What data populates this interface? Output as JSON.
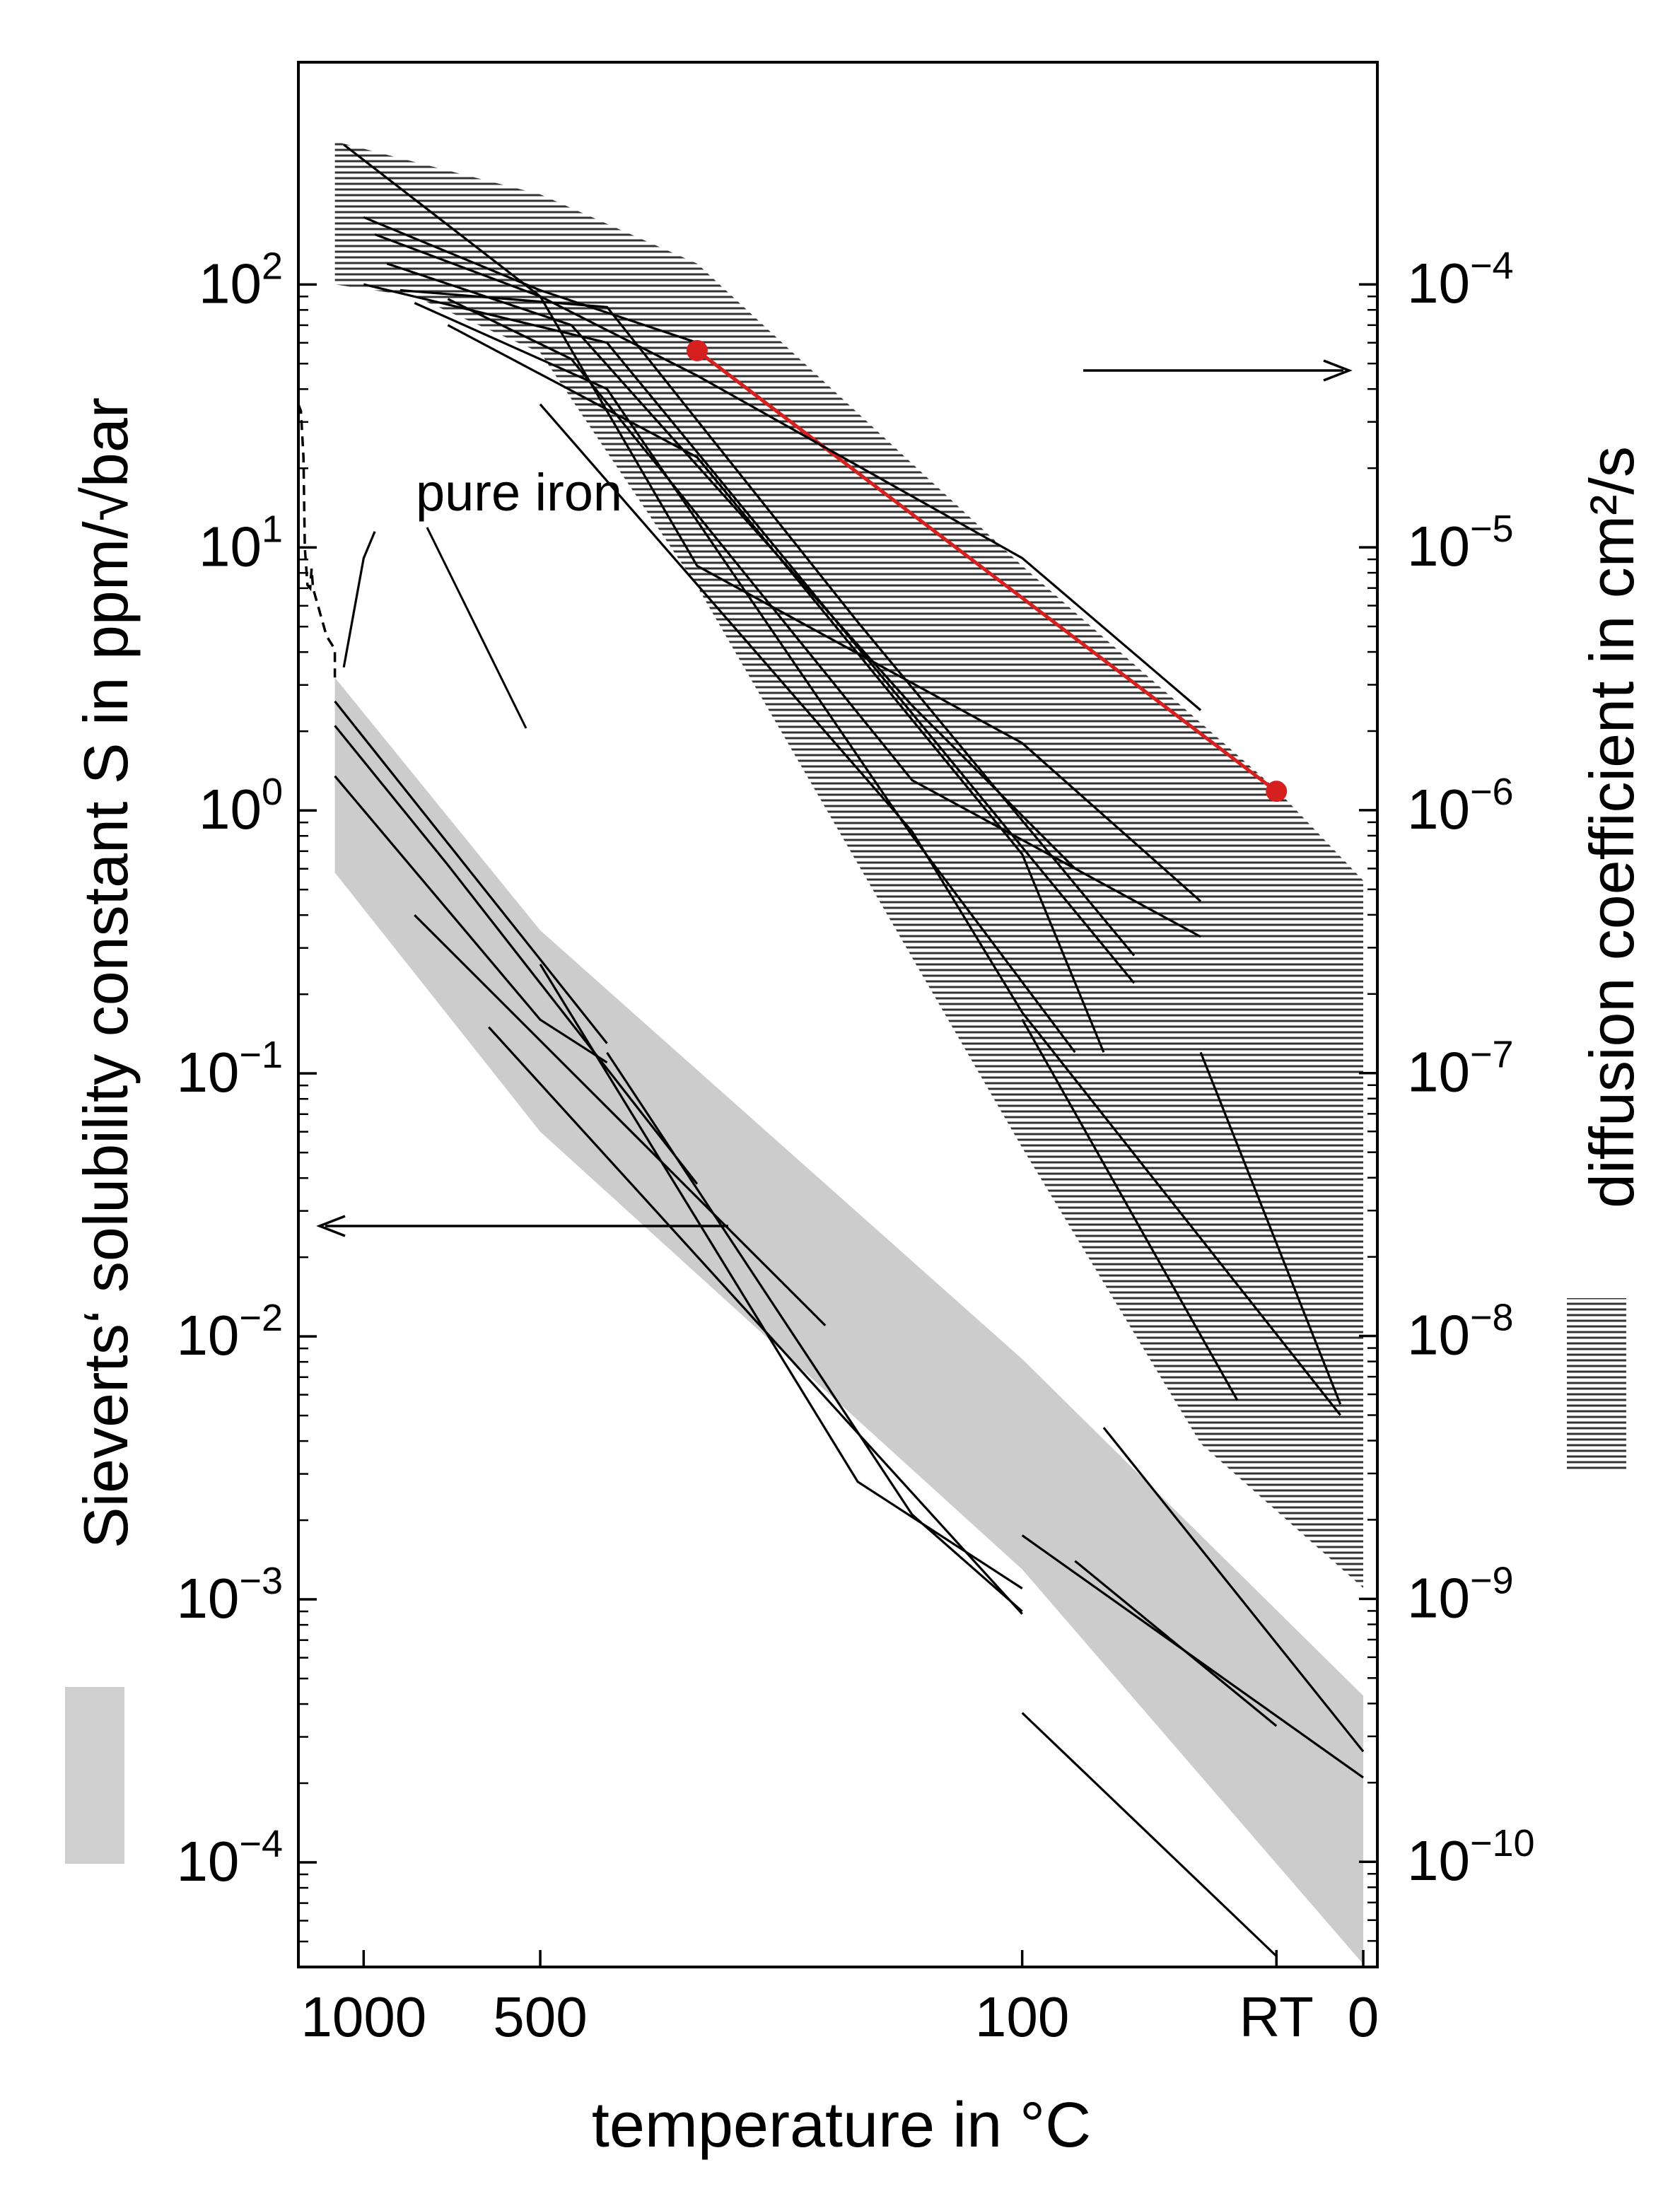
{
  "chart_data": {
    "type": "line",
    "xlabel": "temperature in °C",
    "ylabel_left": "Sieverts‘ solubility constant S in ppm/√bar",
    "ylabel_right": "diffusion coefficient in cm²/s",
    "x_scale": "reciprocal absolute temperature (1/T)",
    "x_ticks": [
      "1000",
      "500",
      "100",
      "RT",
      "0"
    ],
    "x_ticks_celsius": [
      1000,
      500,
      100,
      20,
      0
    ],
    "xlim_celsius": [
      1400,
      -3
    ],
    "y_left_scale": "log",
    "y_left_ticks": [
      "10^2",
      "10^1",
      "10^0",
      "10^-1",
      "10^-2",
      "10^-3",
      "10^-4"
    ],
    "y_left_ticks_base": "10",
    "y_left_ticks_exp": [
      "2",
      "1",
      "0",
      "−1",
      "−2",
      "−3",
      "−4"
    ],
    "y_left_ticks_values": [
      100,
      10,
      1,
      0.1,
      0.01,
      0.001,
      0.0001
    ],
    "ylim_left": [
      4e-05,
      700
    ],
    "y_right_scale": "log",
    "y_right_ticks": [
      "10^-4",
      "10^-5",
      "10^-6",
      "10^-7",
      "10^-8",
      "10^-9",
      "10^-10"
    ],
    "y_right_ticks_base": "10",
    "y_right_ticks_exp": [
      "−4",
      "−5",
      "−6",
      "−7",
      "−8",
      "−9",
      "−10"
    ],
    "y_right_ticks_values": [
      0.0001,
      1e-05,
      1e-06,
      1e-07,
      1e-08,
      1e-09,
      1e-10
    ],
    "ylim_right": [
      3.98e-11,
      0.0007
    ],
    "annotations": [
      "pure iron"
    ],
    "legend": [
      {
        "label": "Sieverts‘ solubility constant S",
        "style": "grey shaded band",
        "color": "#cccccc"
      },
      {
        "label": "diffusion coefficient",
        "style": "horizontal hatching band",
        "color": "#555555"
      }
    ],
    "series": [
      {
        "kind": "diffusion-band",
        "axis": "right",
        "color": "#555555",
        "upper": [
          [
            1150,
            0.00035
          ],
          [
            500,
            0.00022
          ],
          [
            300,
            0.00012
          ],
          [
            100,
            8.5e-06
          ],
          [
            20,
            1.2e-06
          ],
          [
            0,
            5.4e-07
          ]
        ],
        "lower": [
          [
            1150,
            0.0001
          ],
          [
            800,
            9e-05
          ],
          [
            500,
            5.5e-05
          ],
          [
            300,
            7.1e-06
          ],
          [
            100,
            5.2e-08
          ],
          [
            40,
            3.9e-09
          ],
          [
            0,
            1.1e-09
          ]
        ]
      },
      {
        "kind": "solubility-band",
        "axis": "left",
        "color": "#cccccc",
        "upper": [
          [
            1150,
            3.2
          ],
          [
            500,
            0.35
          ],
          [
            100,
            0.0082
          ],
          [
            0,
            0.00043
          ]
        ],
        "lower": [
          [
            1150,
            0.58
          ],
          [
            500,
            0.06
          ],
          [
            100,
            0.0013
          ],
          [
            0,
            4.1e-05
          ]
        ]
      },
      {
        "kind": "red-line",
        "axis": "right",
        "color": "#d62020",
        "points": [
          [
            300,
            5.6e-05
          ],
          [
            20,
            1.18e-06
          ]
        ]
      },
      {
        "kind": "pure-iron",
        "axis": "left",
        "style": "dashed",
        "points": [
          [
            1400,
            35
          ],
          [
            1380,
            33
          ],
          [
            1360,
            22
          ],
          [
            1350,
            10
          ],
          [
            1330,
            7.2
          ],
          [
            1310,
            7.0
          ],
          [
            1300,
            8.3
          ],
          [
            1290,
            7.0
          ],
          [
            1200,
            4.6
          ],
          [
            1150,
            4.1
          ],
          [
            1150,
            3.2
          ]
        ]
      },
      {
        "kind": "thin",
        "axis": "left",
        "points": [
          [
            1150,
            2.6
          ],
          [
            700,
            0.75
          ],
          [
            400,
            0.13
          ]
        ]
      },
      {
        "kind": "thin",
        "axis": "left",
        "points": [
          [
            1150,
            2.1
          ],
          [
            700,
            0.62
          ],
          [
            300,
            0.038
          ]
        ]
      },
      {
        "kind": "thin",
        "axis": "left",
        "points": [
          [
            1150,
            1.35
          ],
          [
            500,
            0.16
          ],
          [
            400,
            0.11
          ]
        ]
      },
      {
        "kind": "thin",
        "axis": "left",
        "points": [
          [
            800,
            0.4
          ],
          [
            200,
            0.011
          ]
        ]
      },
      {
        "kind": "thin",
        "axis": "left",
        "points": [
          [
            500,
            0.26
          ],
          [
            180,
            0.0028
          ],
          [
            100,
            0.0011
          ]
        ]
      },
      {
        "kind": "thin",
        "axis": "left",
        "points": [
          [
            400,
            0.12
          ],
          [
            150,
            0.0021
          ],
          [
            100,
            0.0009
          ]
        ]
      },
      {
        "kind": "thin",
        "axis": "left",
        "points": [
          [
            600,
            0.15
          ],
          [
            100,
            0.00088
          ]
        ]
      },
      {
        "kind": "thin",
        "axis": "left",
        "points": [
          [
            70,
            0.0045
          ],
          [
            0,
            0.000264
          ]
        ]
      },
      {
        "kind": "thin",
        "axis": "left",
        "points": [
          [
            100,
            0.00175
          ],
          [
            0,
            0.00021
          ]
        ]
      },
      {
        "kind": "thin",
        "axis": "left",
        "points": [
          [
            80,
            0.0014
          ],
          [
            20,
            0.00033
          ]
        ]
      },
      {
        "kind": "thin",
        "axis": "left",
        "points": [
          [
            100,
            0.00037
          ],
          [
            20,
            4.4e-05
          ]
        ]
      },
      {
        "kind": "thin",
        "axis": "left",
        "points": [
          [
            1100,
            3.5
          ],
          [
            1000,
            9.1
          ],
          [
            950,
            11.5
          ]
        ]
      },
      {
        "kind": "thin",
        "axis": "right",
        "points": [
          [
            1100,
            0.00034
          ],
          [
            500,
            9e-05
          ],
          [
            300,
            4.5e-05
          ],
          [
            100,
            9.1e-06
          ],
          [
            40,
            2.4e-06
          ]
        ]
      },
      {
        "kind": "thin",
        "axis": "right",
        "points": [
          [
            1000,
            0.00018
          ],
          [
            500,
            9.5e-05
          ],
          [
            300,
            6e-05
          ]
        ]
      },
      {
        "kind": "thin",
        "axis": "right",
        "points": [
          [
            950,
            0.000155
          ],
          [
            500,
            9e-05
          ],
          [
            300,
            8.5e-06
          ],
          [
            100,
            1.8e-06
          ],
          [
            40,
            4.5e-07
          ]
        ]
      },
      {
        "kind": "thin",
        "axis": "right",
        "points": [
          [
            900,
            0.00012
          ],
          [
            450,
            7e-05
          ],
          [
            150,
            2.5e-06
          ],
          [
            80,
            6e-07
          ]
        ]
      },
      {
        "kind": "thin",
        "axis": "right",
        "points": [
          [
            1000,
            0.0001
          ],
          [
            400,
            6e-05
          ],
          [
            60,
            2.2e-07
          ]
        ]
      },
      {
        "kind": "thin",
        "axis": "right",
        "points": [
          [
            850,
            9.5e-05
          ],
          [
            400,
            8.2e-05
          ],
          [
            180,
            5.2e-06
          ],
          [
            60,
            2.8e-07
          ]
        ]
      },
      {
        "kind": "thin",
        "axis": "right",
        "points": [
          [
            700,
            8.8e-05
          ],
          [
            450,
            5.2e-05
          ],
          [
            150,
            1.3e-06
          ],
          [
            40,
            3.3e-07
          ]
        ]
      },
      {
        "kind": "thin",
        "axis": "right",
        "points": [
          [
            700,
            7e-05
          ],
          [
            300,
            2.2e-05
          ],
          [
            100,
            6.8e-07
          ],
          [
            70,
            1.2e-07
          ]
        ]
      },
      {
        "kind": "thin",
        "axis": "right",
        "points": [
          [
            800,
            8.5e-05
          ],
          [
            400,
            4e-05
          ],
          [
            150,
            8e-07
          ],
          [
            80,
            1.2e-07
          ]
        ]
      },
      {
        "kind": "thin",
        "axis": "right",
        "points": [
          [
            500,
            3.5e-05
          ],
          [
            150,
            8.3e-07
          ],
          [
            100,
            1.7e-07
          ],
          [
            5,
            5e-09
          ]
        ]
      },
      {
        "kind": "thin",
        "axis": "right",
        "points": [
          [
            100,
            1.6e-07
          ],
          [
            30,
            5.7e-09
          ]
        ]
      },
      {
        "kind": "thin",
        "axis": "right",
        "points": [
          [
            40,
            1.2e-07
          ],
          [
            5,
            5.5e-09
          ]
        ]
      }
    ]
  }
}
